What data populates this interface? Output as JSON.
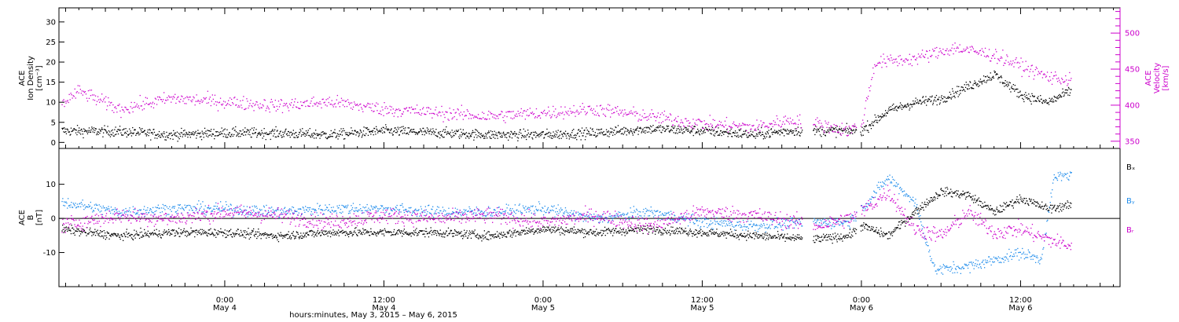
{
  "colors": {
    "black": "#000000",
    "magenta": "#cc00cc",
    "blue": "#1f8ceb"
  },
  "figure": {
    "x_title": "hours:minutes,  May  3, 2015 – May  6, 2015",
    "x_ticks": [
      {
        "t": 24,
        "l1": "0:00",
        "l2": "May 4"
      },
      {
        "t": 36,
        "l1": "12:00",
        "l2": "May 4"
      },
      {
        "t": 48,
        "l1": "0:00",
        "l2": "May 5"
      },
      {
        "t": 60,
        "l1": "12:00",
        "l2": "May 5"
      },
      {
        "t": 72,
        "l1": "0:00",
        "l2": "May 6"
      },
      {
        "t": 84,
        "l1": "12:00",
        "l2": "May 6"
      }
    ]
  },
  "chart_data": [
    {
      "type": "scatter",
      "xlim": [
        11.5,
        91.5
      ],
      "ylim_left": [
        -1.5,
        33.5
      ],
      "ylim_right": [
        340,
        535
      ],
      "ylabel_left": [
        "ACE",
        "Ion Density",
        "[cm⁻³]"
      ],
      "ylabel_right": [
        "ACE",
        "Velocity",
        "[km/s]"
      ],
      "yticks_left": [
        0,
        5,
        10,
        15,
        20,
        25,
        30
      ],
      "yticks_right": [
        350,
        400,
        450,
        500
      ],
      "series": [
        {
          "color": "black",
          "axis": "left",
          "profile": [
            [
              11.5,
              3
            ],
            [
              16,
              2.8
            ],
            [
              20,
              2
            ],
            [
              24,
              2.5
            ],
            [
              28,
              2.4
            ],
            [
              32,
              2
            ],
            [
              36,
              3
            ],
            [
              44,
              2
            ],
            [
              48,
              2
            ],
            [
              52,
              2.5
            ],
            [
              56,
              3.5
            ],
            [
              60,
              3
            ],
            [
              64,
              2
            ],
            [
              66.5,
              3
            ],
            [
              68.5,
              3
            ],
            [
              71,
              3
            ],
            [
              72,
              3
            ],
            [
              74,
              8
            ],
            [
              76,
              10
            ],
            [
              78,
              11
            ],
            [
              80,
              14
            ],
            [
              82,
              17
            ],
            [
              84,
              12
            ],
            [
              86,
              10
            ],
            [
              87.8,
              13
            ]
          ],
          "gaps": [
            [
              67.5,
              68.3
            ],
            [
              71.6,
              71.9
            ]
          ],
          "noise": 1.2,
          "step": 0.04
        },
        {
          "color": "magenta",
          "axis": "right",
          "profile": [
            [
              11.5,
              400
            ],
            [
              13,
              420
            ],
            [
              16,
              395
            ],
            [
              20,
              410
            ],
            [
              24,
              405
            ],
            [
              28,
              400
            ],
            [
              32,
              405
            ],
            [
              36,
              395
            ],
            [
              40,
              390
            ],
            [
              44,
              385
            ],
            [
              48,
              390
            ],
            [
              52,
              395
            ],
            [
              56,
              385
            ],
            [
              60,
              375
            ],
            [
              64,
              370
            ],
            [
              66.5,
              380
            ],
            [
              68.5,
              375
            ],
            [
              71,
              365
            ],
            [
              72,
              375
            ],
            [
              73,
              460
            ],
            [
              76,
              465
            ],
            [
              79,
              480
            ],
            [
              82,
              470
            ],
            [
              84,
              455
            ],
            [
              86,
              440
            ],
            [
              87.8,
              435
            ]
          ],
          "gaps": [
            [
              67.5,
              68.3
            ],
            [
              71.6,
              71.9
            ]
          ],
          "noise": 9,
          "step": 0.06
        }
      ]
    },
    {
      "type": "scatter",
      "xlim": [
        11.5,
        91.5
      ],
      "ylim": [
        -20,
        20.5
      ],
      "ylabel": [
        "ACE",
        "B",
        "[nT]"
      ],
      "yticks": [
        -10,
        0,
        10
      ],
      "zero_line": true,
      "legend": [
        {
          "text": "Bₓ",
          "color": "black"
        },
        {
          "text": "Bᵧ",
          "color": "blue"
        },
        {
          "text": "Bᵣ",
          "color": "magenta"
        }
      ],
      "series": [
        {
          "name": "Bx",
          "color": "black",
          "profile": [
            [
              11.5,
              -3
            ],
            [
              16,
              -5
            ],
            [
              20,
              -4
            ],
            [
              24,
              -4
            ],
            [
              28,
              -5
            ],
            [
              32,
              -4
            ],
            [
              36,
              -4
            ],
            [
              40,
              -4
            ],
            [
              44,
              -5
            ],
            [
              48,
              -3
            ],
            [
              52,
              -4
            ],
            [
              56,
              -3
            ],
            [
              60,
              -4
            ],
            [
              64,
              -5
            ],
            [
              68.5,
              -6
            ],
            [
              71,
              -5
            ],
            [
              72,
              -2
            ],
            [
              74,
              -5
            ],
            [
              76,
              2
            ],
            [
              78,
              8
            ],
            [
              80,
              7
            ],
            [
              82,
              2
            ],
            [
              84,
              6
            ],
            [
              86,
              3
            ],
            [
              87.8,
              4
            ]
          ],
          "gaps": [
            [
              67.5,
              68.3
            ],
            [
              71.6,
              71.9
            ]
          ],
          "noise": 1.2,
          "step": 0.04
        },
        {
          "name": "By",
          "color": "blue",
          "profile": [
            [
              11.5,
              5
            ],
            [
              16,
              2
            ],
            [
              20,
              3
            ],
            [
              24,
              3
            ],
            [
              28,
              2
            ],
            [
              32,
              3
            ],
            [
              36,
              3
            ],
            [
              40,
              2
            ],
            [
              44,
              2
            ],
            [
              48,
              3
            ],
            [
              52,
              0
            ],
            [
              56,
              2
            ],
            [
              60,
              -1
            ],
            [
              64,
              -2
            ],
            [
              68.5,
              -1
            ],
            [
              71,
              -1
            ],
            [
              72,
              3
            ],
            [
              74,
              12
            ],
            [
              76,
              5
            ],
            [
              77.5,
              -15
            ],
            [
              80,
              -14
            ],
            [
              82,
              -12
            ],
            [
              84,
              -10
            ],
            [
              85.5,
              -12
            ],
            [
              86.5,
              12
            ],
            [
              87.8,
              13
            ]
          ],
          "gaps": [
            [
              67.5,
              68.3
            ],
            [
              71.6,
              71.9
            ]
          ],
          "noise": 1.6,
          "step": 0.05
        },
        {
          "name": "Bz",
          "color": "magenta",
          "profile": [
            [
              11.5,
              -2
            ],
            [
              16,
              1
            ],
            [
              20,
              0
            ],
            [
              24,
              2
            ],
            [
              28,
              1
            ],
            [
              32,
              -1
            ],
            [
              36,
              1
            ],
            [
              40,
              0
            ],
            [
              44,
              1
            ],
            [
              48,
              -1
            ],
            [
              52,
              1
            ],
            [
              56,
              -2
            ],
            [
              60,
              2
            ],
            [
              64,
              1
            ],
            [
              68.5,
              -2
            ],
            [
              71,
              0
            ],
            [
              72,
              2
            ],
            [
              74,
              8
            ],
            [
              76,
              -3
            ],
            [
              78,
              -5
            ],
            [
              80,
              2
            ],
            [
              82,
              -4
            ],
            [
              84,
              -3
            ],
            [
              86,
              -6
            ],
            [
              87.8,
              -8
            ]
          ],
          "gaps": [
            [
              67.5,
              68.3
            ],
            [
              71.6,
              71.9
            ]
          ],
          "noise": 2.2,
          "step": 0.05
        }
      ]
    }
  ]
}
